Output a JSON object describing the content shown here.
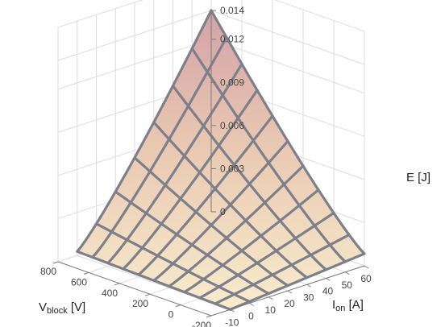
{
  "chart_data": {
    "type": "surface",
    "x_axis": {
      "label_main": "I",
      "label_sub": "on",
      "label_unit": " [A]",
      "range": [
        -20,
        60
      ],
      "ticks": [
        "-10",
        "0",
        "10",
        "20",
        "30",
        "40",
        "50",
        "60"
      ]
    },
    "y_axis": {
      "label_main": "V",
      "label_sub": "block",
      "label_unit": " [V]",
      "range": [
        -200,
        800
      ],
      "ticks": [
        "-200",
        "0",
        "200",
        "400",
        "600",
        "800"
      ]
    },
    "z_axis": {
      "label": "E [J]",
      "range": [
        0,
        0.014
      ],
      "ticks": [
        "0",
        "0.003",
        "0.006",
        "0.009",
        "0.012",
        "0.014"
      ]
    },
    "surface": {
      "I_values": [
        -10,
        0,
        10,
        20,
        30,
        40,
        50,
        60
      ],
      "V_values": [
        -200,
        -100,
        0,
        100,
        200,
        300,
        400,
        500,
        600,
        700,
        800
      ],
      "max_energy": 0.014,
      "corner_energy": {
        "I60_V800": 0.014,
        "I60_V-200": 0.0008,
        "I-10_V800": 0.0003,
        "I-10_V-200": 0.0
      }
    },
    "colorscale": [
      "#f8eccc",
      "#e9c8b2",
      "#d3a2a6"
    ],
    "grid": true
  }
}
